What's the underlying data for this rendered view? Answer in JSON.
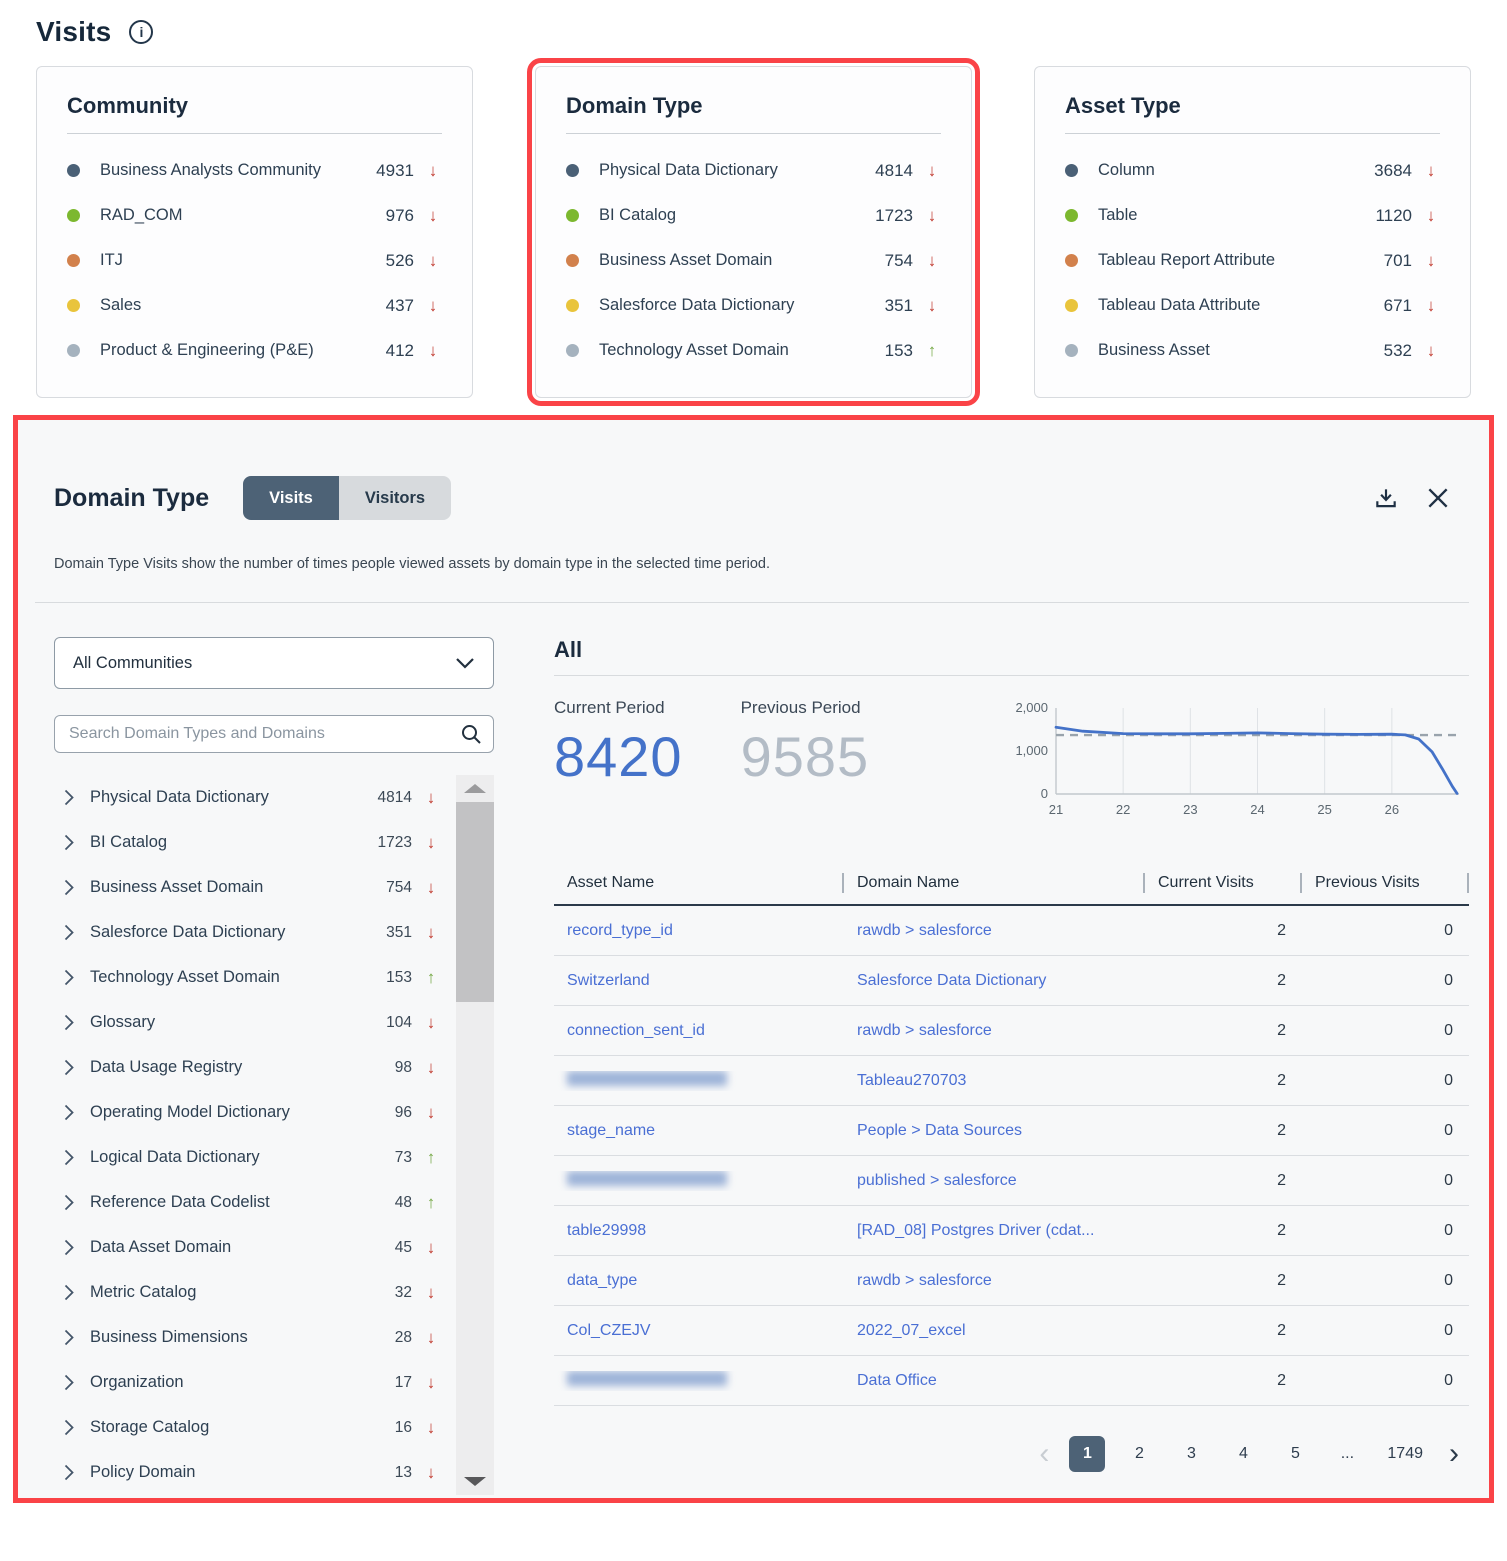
{
  "page": {
    "title": "Visits"
  },
  "colors": {
    "annotation_red": "#fa4347",
    "accent_slate": "#4d6276",
    "link_blue": "#4a6fd4",
    "current_period_blue": "#4472c9",
    "previous_period_gray": "#b3bcc6",
    "trend_down_red": "#c13b30",
    "trend_up_green": "#74a844"
  },
  "cards": [
    {
      "title": "Community",
      "items": [
        {
          "label": "Business Analysts Community",
          "value": "4931",
          "trend": "down",
          "color": "#4a6076"
        },
        {
          "label": "RAD_COM",
          "value": "976",
          "trend": "down",
          "color": "#7cb82f"
        },
        {
          "label": "ITJ",
          "value": "526",
          "trend": "down",
          "color": "#d2814c"
        },
        {
          "label": "Sales",
          "value": "437",
          "trend": "down",
          "color": "#e9c43c"
        },
        {
          "label": "Product & Engineering (P&E)",
          "value": "412",
          "trend": "down",
          "color": "#a5b2be"
        }
      ]
    },
    {
      "title": "Domain Type",
      "items": [
        {
          "label": "Physical Data Dictionary",
          "value": "4814",
          "trend": "down",
          "color": "#4a6076"
        },
        {
          "label": "BI Catalog",
          "value": "1723",
          "trend": "down",
          "color": "#7cb82f"
        },
        {
          "label": "Business Asset Domain",
          "value": "754",
          "trend": "down",
          "color": "#d2814c"
        },
        {
          "label": "Salesforce Data Dictionary",
          "value": "351",
          "trend": "down",
          "color": "#e9c43c"
        },
        {
          "label": "Technology Asset Domain",
          "value": "153",
          "trend": "up",
          "color": "#a5b2be"
        }
      ]
    },
    {
      "title": "Asset Type",
      "items": [
        {
          "label": "Column",
          "value": "3684",
          "trend": "down",
          "color": "#4a6076"
        },
        {
          "label": "Table",
          "value": "1120",
          "trend": "down",
          "color": "#7cb82f"
        },
        {
          "label": "Tableau Report Attribute",
          "value": "701",
          "trend": "down",
          "color": "#d2814c"
        },
        {
          "label": "Tableau Data Attribute",
          "value": "671",
          "trend": "down",
          "color": "#e9c43c"
        },
        {
          "label": "Business Asset",
          "value": "532",
          "trend": "down",
          "color": "#a5b2be"
        }
      ]
    }
  ],
  "panel": {
    "title": "Domain Type",
    "tabs": [
      {
        "label": "Visits",
        "active": true
      },
      {
        "label": "Visitors",
        "active": false
      }
    ],
    "description": "Domain Type Visits show the number of times people viewed assets by domain type in the selected time period.",
    "filters": {
      "community_dropdown_value": "All Communities",
      "search_placeholder": "Search Domain Types and Domains"
    },
    "domain_list": [
      {
        "label": "Physical Data Dictionary",
        "value": "4814",
        "trend": "down"
      },
      {
        "label": "BI Catalog",
        "value": "1723",
        "trend": "down"
      },
      {
        "label": "Business Asset Domain",
        "value": "754",
        "trend": "down"
      },
      {
        "label": "Salesforce Data Dictionary",
        "value": "351",
        "trend": "down"
      },
      {
        "label": "Technology Asset Domain",
        "value": "153",
        "trend": "up"
      },
      {
        "label": "Glossary",
        "value": "104",
        "trend": "down"
      },
      {
        "label": "Data Usage Registry",
        "value": "98",
        "trend": "down"
      },
      {
        "label": "Operating Model Dictionary",
        "value": "96",
        "trend": "down"
      },
      {
        "label": "Logical Data Dictionary",
        "value": "73",
        "trend": "up"
      },
      {
        "label": "Reference Data Codelist",
        "value": "48",
        "trend": "up"
      },
      {
        "label": "Data Asset Domain",
        "value": "45",
        "trend": "down"
      },
      {
        "label": "Metric Catalog",
        "value": "32",
        "trend": "down"
      },
      {
        "label": "Business Dimensions",
        "value": "28",
        "trend": "down"
      },
      {
        "label": "Organization",
        "value": "17",
        "trend": "down"
      },
      {
        "label": "Storage Catalog",
        "value": "16",
        "trend": "down"
      },
      {
        "label": "Policy Domain",
        "value": "13",
        "trend": "down"
      }
    ],
    "summary": {
      "heading": "All",
      "current_label": "Current Period",
      "current_value": "8420",
      "previous_label": "Previous Period",
      "previous_value": "9585"
    },
    "chart_data": {
      "type": "line",
      "title": "",
      "xlabel": "",
      "ylabel": "",
      "xlim": [
        21,
        27
      ],
      "ylim": [
        0,
        2000
      ],
      "xticks": [
        21,
        22,
        23,
        24,
        25,
        26
      ],
      "yticks": [
        {
          "value": 0,
          "label": "0"
        },
        {
          "value": 1000,
          "label": "1,000"
        },
        {
          "value": 2000,
          "label": "2,000"
        }
      ],
      "grid": "vertical",
      "previous_avg": 1370,
      "series": [
        {
          "name": "Current Period",
          "points": [
            [
              21,
              1550
            ],
            [
              21.4,
              1460
            ],
            [
              22,
              1405
            ],
            [
              22.5,
              1400
            ],
            [
              23,
              1400
            ],
            [
              23.5,
              1410
            ],
            [
              24,
              1420
            ],
            [
              24.5,
              1405
            ],
            [
              25,
              1390
            ],
            [
              25.5,
              1385
            ],
            [
              26,
              1390
            ],
            [
              26.2,
              1375
            ],
            [
              26.4,
              1280
            ],
            [
              26.6,
              980
            ],
            [
              26.75,
              590
            ],
            [
              26.9,
              180
            ],
            [
              26.97,
              15
            ]
          ]
        }
      ]
    },
    "table": {
      "headers": [
        "Asset Name",
        "Domain Name",
        "Current Visits",
        "Previous Visits"
      ],
      "rows": [
        {
          "asset": "record_type_id",
          "domain": "rawdb > salesforce",
          "current": "2",
          "previous": "0"
        },
        {
          "asset": "Switzerland",
          "domain": "Salesforce Data Dictionary",
          "current": "2",
          "previous": "0"
        },
        {
          "asset": "connection_sent_id",
          "domain": "rawdb > salesforce",
          "current": "2",
          "previous": "0"
        },
        {
          "asset": "",
          "asset_class": "redacted",
          "domain": "Tableau270703",
          "current": "2",
          "previous": "0"
        },
        {
          "asset": "stage_name",
          "domain": "People > Data Sources",
          "current": "2",
          "previous": "0"
        },
        {
          "asset": "",
          "asset_class": "redacted",
          "domain": "published > salesforce",
          "current": "2",
          "previous": "0"
        },
        {
          "asset": "table29998",
          "domain": "[RAD_08] Postgres Driver (cdat...",
          "current": "2",
          "previous": "0"
        },
        {
          "asset": "data_type",
          "domain": "rawdb > salesforce",
          "current": "2",
          "previous": "0"
        },
        {
          "asset": "Col_CZEJV",
          "domain": "2022_07_excel",
          "current": "2",
          "previous": "0"
        },
        {
          "asset": "",
          "asset_class": "redacted",
          "domain": "Data Office",
          "current": "2",
          "previous": "0"
        }
      ]
    },
    "pagination": {
      "items": [
        {
          "label": "1",
          "state": "active"
        },
        {
          "label": "2"
        },
        {
          "label": "3"
        },
        {
          "label": "4"
        },
        {
          "label": "5"
        },
        {
          "label": "...",
          "state": "ellipsis"
        },
        {
          "label": "1749"
        }
      ]
    }
  }
}
